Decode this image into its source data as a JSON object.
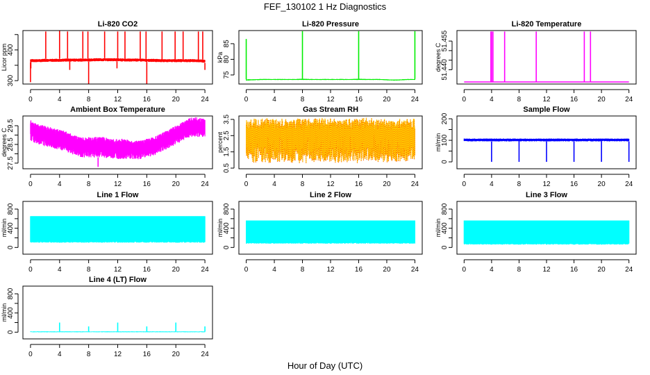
{
  "title": "FEF_130102  1 Hz Diagnostics",
  "xlabel": "Hour of Day (UTC)",
  "chart_data": [
    {
      "type": "line",
      "title": "Li-820 CO2",
      "ylabel": "Licor ppm",
      "color": "#ff0000",
      "xlim": [
        0,
        24
      ],
      "xticks": [
        0,
        4,
        8,
        12,
        16,
        20,
        24
      ],
      "ylim": [
        289,
        463
      ],
      "yticks": [
        300,
        350,
        400,
        450
      ],
      "ylabels": [
        300,
        400
      ],
      "band": {
        "lo": [
          360,
          360,
          361,
          361,
          361,
          362,
          362,
          362,
          362,
          363,
          363,
          363,
          363,
          362,
          362,
          362,
          361,
          361,
          360,
          360,
          360,
          360,
          360,
          360,
          358
        ],
        "hi": [
          370,
          370,
          371,
          371,
          371,
          372,
          372,
          372,
          372,
          373,
          373,
          373,
          373,
          372,
          372,
          372,
          371,
          371,
          370,
          370,
          370,
          370,
          370,
          370,
          368
        ]
      },
      "spikes": [
        [
          0,
          295
        ],
        [
          0.05,
          340
        ],
        [
          2.1,
          460
        ],
        [
          4,
          462
        ],
        [
          5.1,
          460
        ],
        [
          5.4,
          335
        ],
        [
          7.2,
          460
        ],
        [
          7.9,
          460
        ],
        [
          8,
          290
        ],
        [
          10.2,
          460
        ],
        [
          11.9,
          340
        ],
        [
          12,
          460
        ],
        [
          13,
          460
        ],
        [
          15.1,
          460
        ],
        [
          15.9,
          460
        ],
        [
          16,
          288
        ],
        [
          18.1,
          460
        ],
        [
          19.9,
          460
        ],
        [
          21,
          460
        ],
        [
          23.1,
          460
        ],
        [
          23.7,
          460
        ],
        [
          24,
          335
        ]
      ]
    },
    {
      "type": "line",
      "title": "Li-820 Pressure",
      "ylabel": "kPa",
      "color": "#00ee00",
      "xlim": [
        0,
        24
      ],
      "xticks": [
        0,
        4,
        8,
        12,
        16,
        20,
        24
      ],
      "ylim": [
        72.1,
        89.2
      ],
      "yticks": [
        75,
        80,
        85
      ],
      "ylabels": [
        75,
        80,
        85
      ],
      "band": {
        "lo": [
          73.2,
          73.3,
          73.4,
          73.4,
          73.4,
          73.4,
          73.4,
          73.4,
          73.4,
          73.4,
          73.4,
          73.4,
          73.4,
          73.4,
          73.4,
          73.4,
          73.4,
          73.4,
          73.4,
          73.4,
          73.3,
          73.2,
          73.3,
          73.4,
          73.4
        ],
        "hi": [
          73.6,
          73.6,
          73.7,
          73.7,
          73.7,
          73.7,
          73.7,
          73.7,
          73.8,
          73.7,
          73.7,
          73.7,
          73.7,
          73.7,
          73.7,
          73.7,
          73.8,
          73.7,
          73.7,
          73.7,
          73.6,
          73.5,
          73.6,
          73.7,
          73.7
        ]
      },
      "spikes": [
        [
          0,
          86.5
        ],
        [
          8,
          89
        ],
        [
          16,
          89
        ],
        [
          24,
          89
        ]
      ]
    },
    {
      "type": "line",
      "title": "Li-820 Temperature",
      "ylabel": "degrees C",
      "color": "#ff00ff",
      "xlim": [
        0,
        24
      ],
      "xticks": [
        0,
        4,
        8,
        12,
        16,
        20,
        24
      ],
      "ylim": [
        51.4325,
        51.4605
      ],
      "yticks": [
        51.44,
        51.445,
        51.45,
        51.455
      ],
      "ylabels": [
        "51.440",
        "51.455"
      ],
      "band": {
        "lo": [
          51.4336
        ],
        "hi": [
          51.4336
        ]
      },
      "spikes": [
        [
          3.9,
          51.46
        ],
        [
          4.0,
          51.46
        ],
        [
          4.2,
          51.46
        ],
        [
          5.9,
          51.46
        ],
        [
          10.5,
          51.46
        ],
        [
          17.5,
          51.46
        ],
        [
          18.4,
          51.46
        ]
      ]
    },
    {
      "type": "line",
      "title": "Ambient Box Temperature",
      "ylabel": "degrees C",
      "color": "#ff00ff",
      "xlim": [
        0,
        24
      ],
      "xticks": [
        0,
        4,
        8,
        12,
        16,
        20,
        24
      ],
      "ylim": [
        27.2,
        30.02
      ],
      "yticks": [
        27.5,
        28,
        28.5,
        29,
        29.5
      ],
      "ylabels": [
        "27.5",
        "28.5",
        "29.5"
      ],
      "band": {
        "lo": [
          28.7,
          28.5,
          28.4,
          28.3,
          28.2,
          28.1,
          27.9,
          27.8,
          27.8,
          27.8,
          27.8,
          27.7,
          27.7,
          27.7,
          27.7,
          27.7,
          27.8,
          27.9,
          28.1,
          28.3,
          28.5,
          28.7,
          28.9,
          28.9,
          28.9
        ],
        "hi": [
          29.8,
          29.6,
          29.5,
          29.4,
          29.3,
          29.2,
          29.0,
          28.9,
          28.9,
          28.9,
          28.9,
          28.8,
          28.8,
          28.8,
          28.7,
          28.7,
          28.8,
          28.9,
          29.1,
          29.3,
          29.5,
          29.7,
          29.95,
          29.95,
          29.9
        ]
      },
      "spikes": [
        [
          9.3,
          27.3
        ]
      ]
    },
    {
      "type": "line",
      "title": "Gas Stream RH",
      "ylabel": "percent",
      "color": "#ffd000",
      "color2": "#ff0000",
      "xlim": [
        0,
        24
      ],
      "xticks": [
        0,
        4,
        8,
        12,
        16,
        20,
        24
      ],
      "ylim": [
        0.46,
        3.71
      ],
      "yticks": [
        0.5,
        1.5,
        2.5,
        3.5
      ],
      "ylabels": [
        "0.5",
        "1.5",
        "2.5",
        "3.5"
      ],
      "band": {
        "lo": [
          0.9,
          0.8,
          0.9,
          0.8,
          0.8,
          0.9,
          0.8,
          0.8,
          0.8,
          0.8,
          0.9,
          0.9,
          0.9,
          0.8,
          0.8,
          0.8,
          0.8,
          0.9,
          0.9,
          0.8,
          0.8,
          0.9,
          0.9,
          0.9,
          1.0
        ],
        "hi": [
          3.55,
          3.55,
          3.55,
          3.6,
          3.55,
          3.55,
          3.55,
          3.55,
          3.55,
          3.55,
          3.55,
          3.6,
          3.55,
          3.55,
          3.55,
          3.55,
          3.55,
          3.6,
          3.6,
          3.55,
          3.55,
          3.55,
          3.55,
          3.55,
          3.55
        ]
      },
      "spikes": []
    },
    {
      "type": "line",
      "title": "Sample Flow",
      "ylabel": "ml/min",
      "color": "#0000ff",
      "xlim": [
        0,
        24
      ],
      "xticks": [
        0,
        4,
        8,
        12,
        16,
        20,
        24
      ],
      "ylim": [
        -32,
        213
      ],
      "yticks": [
        0,
        50,
        100,
        150,
        200
      ],
      "ylabels": [
        0,
        100,
        200
      ],
      "band": {
        "lo": [
          95
        ],
        "hi": [
          108
        ]
      },
      "spikes": [
        [
          4,
          0
        ],
        [
          8,
          0
        ],
        [
          12,
          0
        ],
        [
          16,
          0
        ],
        [
          20,
          0
        ],
        [
          24,
          0
        ]
      ]
    },
    {
      "type": "line",
      "title": "Line 1 Flow",
      "ylabel": "ml/min",
      "color": "#00ffff",
      "xlim": [
        0,
        24
      ],
      "xticks": [
        0,
        4,
        8,
        12,
        16,
        20,
        24
      ],
      "ylim": [
        -140,
        960
      ],
      "yticks": [
        0,
        200,
        400,
        600,
        800
      ],
      "ylabels": [
        0,
        400,
        800
      ],
      "band": {
        "lo": [
          100
        ],
        "hi": [
          650
        ]
      },
      "spikes": []
    },
    {
      "type": "line",
      "title": "Line 2 Flow",
      "ylabel": "ml/min",
      "color": "#00ffff",
      "xlim": [
        0,
        24
      ],
      "xticks": [
        0,
        4,
        8,
        12,
        16,
        20,
        24
      ],
      "ylim": [
        -140,
        960
      ],
      "yticks": [
        0,
        200,
        400,
        600,
        800
      ],
      "ylabels": [
        0,
        400,
        800
      ],
      "band": {
        "lo": [
          80
        ],
        "hi": [
          560
        ]
      },
      "spikes": []
    },
    {
      "type": "line",
      "title": "Line 3 Flow",
      "ylabel": "ml/min",
      "color": "#00ffff",
      "xlim": [
        0,
        24
      ],
      "xticks": [
        0,
        4,
        8,
        12,
        16,
        20,
        24
      ],
      "ylim": [
        -140,
        960
      ],
      "yticks": [
        0,
        200,
        400,
        600,
        800
      ],
      "ylabels": [
        0,
        400,
        800
      ],
      "band": {
        "lo": [
          60
        ],
        "hi": [
          560
        ]
      },
      "spikes": []
    },
    {
      "type": "line",
      "title": "Line 4 (LT) Flow",
      "ylabel": "ml/min",
      "color": "#00ffff",
      "xlim": [
        0,
        24
      ],
      "xticks": [
        0,
        4,
        8,
        12,
        16,
        20,
        24
      ],
      "ylim": [
        -140,
        960
      ],
      "yticks": [
        0,
        200,
        400,
        600,
        800
      ],
      "ylabels": [
        0,
        400,
        800
      ],
      "band": {
        "lo": [
          0
        ],
        "hi": [
          15
        ]
      },
      "spikes": [
        [
          4,
          200
        ],
        [
          8,
          120
        ],
        [
          12,
          200
        ],
        [
          16,
          120
        ],
        [
          20,
          200
        ],
        [
          24,
          120
        ]
      ]
    }
  ]
}
